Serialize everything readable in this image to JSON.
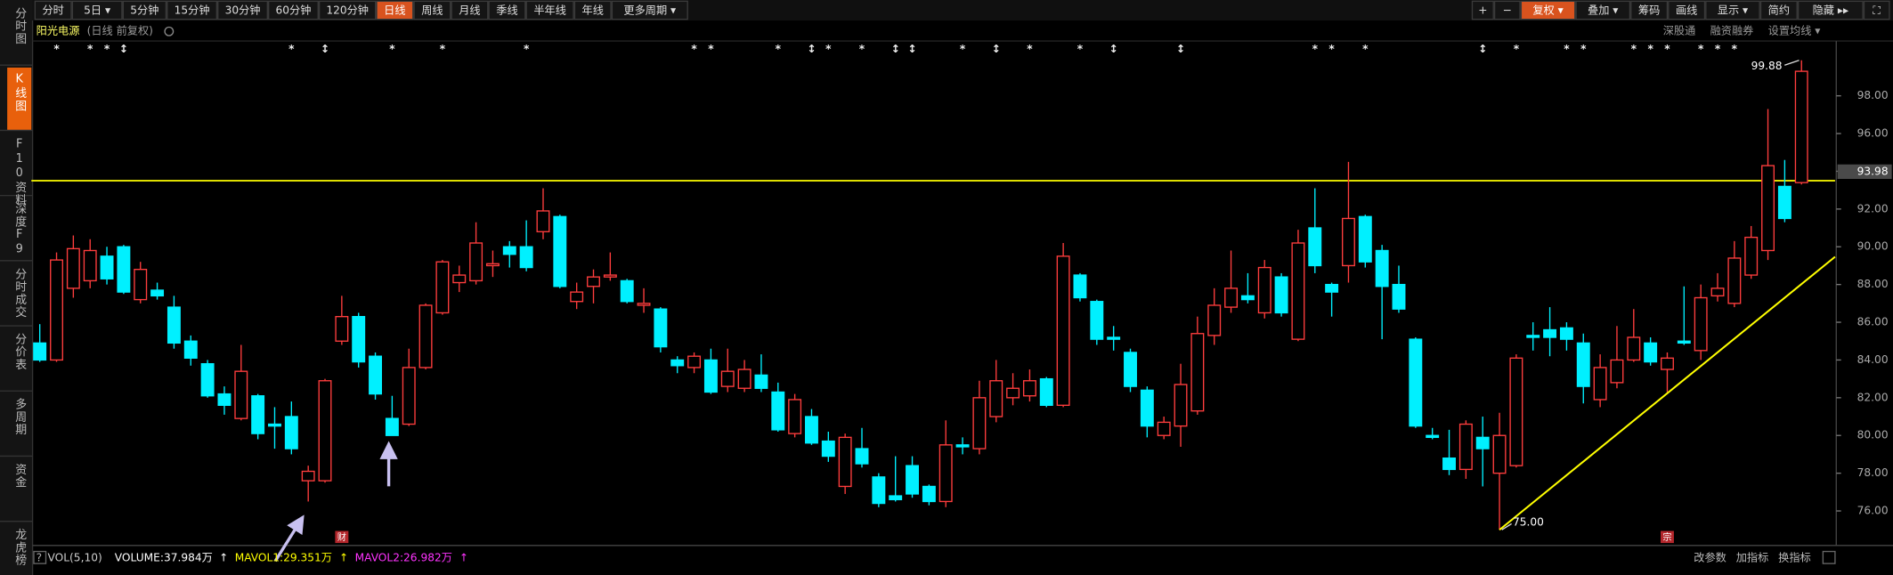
{
  "toolbar": {
    "left": [
      "分时",
      "5日 ▾",
      "5分钟",
      "15分钟",
      "30分钟",
      "60分钟",
      "120分钟",
      "日线",
      "周线",
      "月线",
      "季线",
      "半年线",
      "年线",
      "更多周期 ▾"
    ],
    "left_active_index": 7,
    "right": [
      "+",
      "−",
      "复权 ▾",
      "叠加 ▾",
      "筹码",
      "画线",
      "显示 ▾",
      "简约",
      "隐藏 ▸▸",
      "⛶"
    ],
    "right_active_index": 2
  },
  "header": {
    "stock": "阳光电源",
    "mode": "(日线 前复权)",
    "right": [
      "深股通",
      "融资融券",
      "设置均线 ▾"
    ]
  },
  "sidebar": {
    "items": [
      "分时图",
      "K线图",
      "F10资料",
      "深度F9",
      "分时成交",
      "分价表",
      "多周期",
      "资金",
      "龙虎榜"
    ],
    "active_index": 1
  },
  "chart_data": {
    "type": "candlestick",
    "open": [
      84.9,
      84.0,
      87.8,
      88.2,
      89.5,
      90.0,
      87.2,
      87.7,
      86.8,
      85.0,
      83.8,
      82.2,
      80.9,
      82.1,
      80.6,
      81.0,
      77.6,
      77.6,
      85.0,
      86.3,
      84.2,
      80.9,
      80.6,
      83.6,
      86.5,
      88.1,
      88.2,
      89.0,
      90.0,
      90.0,
      90.8,
      91.6,
      87.1,
      87.9,
      88.4,
      88.2,
      86.9,
      86.7,
      84.0,
      83.6,
      84.0,
      82.6,
      82.5,
      83.2,
      82.3,
      80.1,
      81.0,
      79.7,
      77.3,
      79.3,
      77.8,
      76.8,
      78.4,
      77.3,
      76.5,
      79.5,
      79.3,
      81.0,
      82.0,
      82.1,
      83.0,
      81.6,
      88.5,
      87.1,
      85.2,
      84.4,
      82.4,
      80.0,
      80.5,
      81.3,
      85.3,
      86.8,
      87.4,
      86.5,
      88.4,
      85.1,
      91.0,
      88.0,
      89.0,
      91.6,
      89.8,
      88.0,
      85.1,
      80.0,
      78.8,
      78.2,
      79.9,
      78.0,
      78.4,
      85.3,
      85.6,
      85.7,
      84.9,
      81.9,
      82.8,
      84.0,
      84.9,
      83.5,
      85.0,
      84.5,
      87.4,
      87.0,
      88.5,
      89.8,
      93.2,
      93.4
    ],
    "high": [
      85.9,
      89.7,
      90.6,
      90.4,
      90.0,
      90.1,
      89.2,
      88.1,
      87.4,
      85.3,
      84.0,
      82.6,
      84.8,
      82.2,
      81.5,
      81.8,
      78.4,
      83.0,
      87.4,
      86.5,
      84.4,
      82.1,
      84.6,
      87.0,
      89.3,
      89.0,
      91.3,
      89.8,
      90.3,
      91.4,
      93.1,
      91.7,
      88.1,
      88.8,
      89.7,
      88.3,
      87.8,
      86.8,
      84.2,
      84.4,
      84.6,
      84.6,
      84.0,
      84.3,
      82.8,
      82.2,
      81.4,
      80.2,
      80.1,
      80.4,
      78.0,
      78.9,
      78.9,
      77.4,
      80.8,
      79.9,
      82.9,
      84.0,
      83.3,
      83.5,
      83.1,
      90.2,
      88.6,
      87.2,
      85.8,
      84.6,
      82.6,
      81.0,
      83.8,
      86.3,
      87.8,
      89.8,
      88.6,
      89.3,
      88.6,
      90.9,
      93.1,
      88.1,
      94.5,
      91.7,
      90.1,
      89.0,
      85.2,
      80.4,
      80.3,
      80.8,
      81.0,
      81.2,
      84.3,
      86.0,
      86.8,
      86.0,
      85.4,
      84.3,
      85.8,
      86.7,
      85.2,
      84.4,
      87.9,
      88.0,
      88.6,
      90.3,
      91.1,
      97.3,
      94.6,
      99.88
    ],
    "low": [
      83.9,
      83.9,
      87.3,
      87.8,
      88.0,
      87.5,
      87.0,
      87.2,
      84.6,
      83.7,
      82.0,
      81.1,
      80.8,
      79.8,
      79.3,
      79.0,
      76.5,
      77.5,
      84.8,
      83.6,
      81.9,
      80.0,
      80.5,
      83.5,
      86.4,
      87.6,
      88.0,
      88.4,
      88.9,
      88.7,
      90.4,
      87.8,
      86.7,
      87.0,
      88.2,
      87.0,
      86.5,
      84.4,
      83.3,
      83.3,
      82.2,
      82.3,
      82.3,
      82.3,
      80.2,
      79.9,
      79.5,
      78.6,
      76.9,
      78.3,
      76.2,
      76.5,
      76.7,
      76.3,
      76.2,
      79.0,
      79.0,
      80.7,
      81.6,
      81.8,
      81.5,
      81.5,
      87.1,
      84.8,
      84.5,
      82.3,
      79.9,
      79.8,
      79.4,
      81.1,
      84.8,
      86.5,
      87.0,
      86.2,
      86.3,
      85.0,
      88.6,
      86.3,
      88.1,
      88.9,
      85.1,
      86.5,
      80.4,
      79.8,
      77.9,
      77.7,
      77.3,
      75.0,
      78.3,
      84.5,
      84.2,
      84.5,
      81.7,
      81.5,
      82.5,
      83.9,
      83.7,
      82.3,
      84.8,
      84.0,
      87.1,
      86.8,
      88.3,
      89.3,
      91.3,
      93.3
    ],
    "close": [
      84.0,
      89.3,
      89.9,
      89.8,
      88.3,
      87.6,
      88.8,
      87.4,
      84.9,
      84.1,
      82.1,
      81.6,
      83.4,
      80.1,
      80.5,
      79.3,
      78.1,
      82.9,
      86.3,
      83.9,
      82.2,
      80.0,
      83.6,
      86.9,
      89.2,
      88.5,
      90.2,
      89.1,
      89.6,
      88.9,
      91.9,
      87.9,
      87.6,
      88.4,
      88.5,
      87.1,
      87.0,
      84.7,
      83.7,
      84.2,
      82.3,
      83.4,
      83.5,
      82.5,
      80.3,
      81.9,
      79.6,
      78.9,
      79.9,
      78.5,
      76.4,
      76.6,
      76.9,
      76.5,
      79.5,
      79.4,
      82.0,
      82.9,
      82.5,
      82.9,
      81.6,
      89.5,
      87.3,
      85.1,
      85.1,
      82.6,
      80.5,
      80.7,
      82.7,
      85.4,
      86.9,
      87.8,
      87.2,
      88.9,
      86.5,
      90.2,
      89.0,
      87.6,
      91.5,
      89.2,
      87.9,
      86.7,
      80.5,
      79.9,
      78.2,
      80.6,
      79.3,
      80.0,
      84.1,
      85.2,
      85.2,
      85.1,
      82.6,
      83.6,
      84.0,
      85.2,
      83.9,
      84.1,
      84.9,
      87.3,
      87.8,
      89.4,
      90.5,
      94.3,
      91.5,
      99.3
    ],
    "events": [
      null,
      "*",
      null,
      "*",
      "*",
      "↕",
      null,
      null,
      null,
      null,
      null,
      null,
      null,
      null,
      null,
      "*",
      null,
      "↕",
      null,
      null,
      null,
      "*",
      null,
      null,
      "*",
      null,
      null,
      null,
      null,
      "*",
      null,
      null,
      null,
      null,
      null,
      null,
      null,
      null,
      null,
      "*",
      "*",
      null,
      null,
      null,
      "*",
      null,
      "↕",
      "*",
      null,
      "*",
      null,
      "↕",
      "↕",
      null,
      null,
      "*",
      null,
      "↕",
      null,
      "*",
      null,
      null,
      "*",
      null,
      "↕",
      null,
      null,
      null,
      "↕",
      null,
      null,
      null,
      null,
      null,
      null,
      null,
      "*",
      "*",
      null,
      "*",
      null,
      null,
      null,
      null,
      null,
      null,
      "↕",
      null,
      "*",
      null,
      null,
      "*",
      "*",
      null,
      null,
      "*",
      "*",
      "*",
      null,
      "*",
      "*",
      "*",
      null,
      null,
      null,
      null
    ],
    "flags": [
      null,
      null,
      null,
      null,
      null,
      null,
      null,
      null,
      null,
      null,
      null,
      null,
      null,
      null,
      null,
      null,
      null,
      null,
      "财",
      null,
      null,
      null,
      null,
      null,
      null,
      null,
      null,
      null,
      null,
      null,
      null,
      null,
      null,
      null,
      null,
      null,
      null,
      null,
      null,
      null,
      null,
      null,
      null,
      null,
      null,
      null,
      null,
      null,
      null,
      null,
      null,
      null,
      null,
      null,
      null,
      null,
      null,
      null,
      null,
      null,
      null,
      null,
      null,
      null,
      null,
      null,
      null,
      null,
      null,
      null,
      null,
      null,
      null,
      null,
      null,
      null,
      null,
      null,
      null,
      null,
      null,
      null,
      null,
      null,
      null,
      null,
      null,
      null,
      null,
      null,
      null,
      null,
      null,
      null,
      null,
      null,
      null,
      "宗",
      null,
      null,
      null,
      null,
      null,
      null,
      null,
      null
    ],
    "xlim": [
      -0.5,
      107
    ],
    "ylim": [
      74.3,
      100.2
    ],
    "yticks": [
      {
        "value": 76,
        "label": "76.00"
      },
      {
        "value": 78,
        "label": "78.00"
      },
      {
        "value": 80,
        "label": "80.00"
      },
      {
        "value": 82,
        "label": "82.00"
      },
      {
        "value": 84,
        "label": "84.00"
      },
      {
        "value": 86,
        "label": "86.00"
      },
      {
        "value": 88,
        "label": "88.00"
      },
      {
        "value": 90,
        "label": "90.00"
      },
      {
        "value": 92,
        "label": "92.00"
      },
      {
        "value": 94,
        "label": "94.00"
      },
      {
        "value": 96,
        "label": "96.00"
      },
      {
        "value": 98,
        "label": "98.00"
      }
    ],
    "up_color": "#ff3d3d",
    "down_color": "#00f0ff",
    "reference_line": {
      "value": 93.5,
      "color": "#ffff00"
    },
    "trendline": {
      "x": [
        87,
        107
      ],
      "y": [
        75.0,
        89.47
      ],
      "color": "#ffff00"
    },
    "price_tag": 93.98,
    "max_label": 99.88,
    "min_label": {
      "value": 75.0,
      "label": "75.00"
    }
  },
  "footer": {
    "left": [
      {
        "text": "?",
        "color": "#aaaaaa"
      },
      {
        "text": "VOL(5,10)",
        "color": "#cccccc"
      },
      {
        "text": "VOLUME:37.984万",
        "color": "#ffffff"
      },
      {
        "text": "↑",
        "color": "#ffffff"
      },
      {
        "text": "MAVOL1:29.351万",
        "color": "#ffff00"
      },
      {
        "text": "↑",
        "color": "#ffff00"
      },
      {
        "text": "MAVOL2:26.982万",
        "color": "#ff33ff"
      },
      {
        "text": "↑",
        "color": "#ff33ff"
      }
    ],
    "right": [
      "改参数",
      "加指标",
      "换指标"
    ]
  }
}
